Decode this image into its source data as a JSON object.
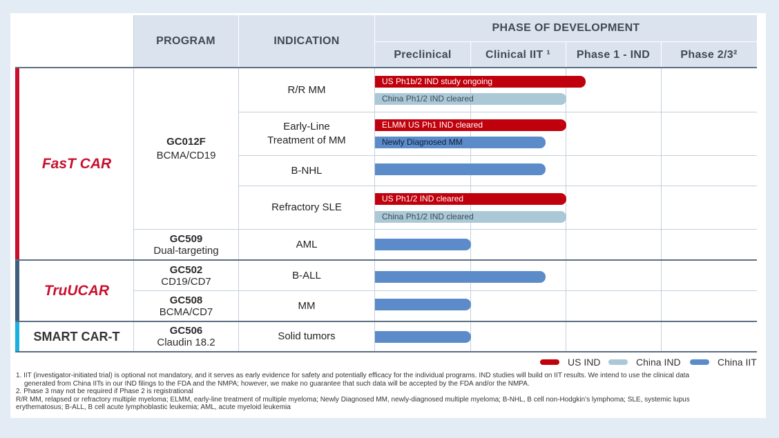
{
  "header": {
    "program": "PROGRAM",
    "indication": "INDICATION",
    "phase_of_development": "PHASE OF DEVELOPMENT",
    "phases": [
      "Preclinical",
      "Clinical IIT ¹",
      "Phase 1 - IND",
      "Phase 2/3²"
    ]
  },
  "platforms": [
    {
      "name": "FasT CAR",
      "color": "#c8102e"
    },
    {
      "name": "TruUCAR",
      "color": "#c8102e"
    },
    {
      "name": "SMART CAR-T",
      "color": "#333333"
    }
  ],
  "platform_stripe_colors": [
    "#c8102e",
    "#3e5f80",
    "#1ab0e0"
  ],
  "programs": [
    {
      "code": "GC012F",
      "target": "BCMA/CD19"
    },
    {
      "code": "GC509",
      "target": "Dual-targeting"
    },
    {
      "code": "GC502",
      "target": "CD19/CD7"
    },
    {
      "code": "GC508",
      "target": "BCMA/CD7"
    },
    {
      "code": "GC506",
      "target": "Claudin 18.2"
    }
  ],
  "indications": [
    "R/R MM",
    "Early-Line",
    "Treatment of MM",
    "B-NHL",
    "Refractory SLE",
    "AML",
    "B-ALL",
    "MM",
    "Solid tumors"
  ],
  "bars": [
    {
      "type": "us",
      "label": "US Ph1b/2 IND study ongoing",
      "progress_phases": 2.2
    },
    {
      "type": "cnind",
      "label": "China Ph1/2 IND cleared",
      "progress_phases": 2.0
    },
    {
      "type": "us",
      "label": "ELMM US Ph1 IND cleared",
      "progress_phases": 2.0
    },
    {
      "type": "cniit",
      "label": "Newly Diagnosed MM",
      "progress_phases": 1.78
    },
    {
      "type": "cniit",
      "label": "",
      "progress_phases": 1.78
    },
    {
      "type": "us",
      "label": "US Ph1/2 IND cleared",
      "progress_phases": 2.0
    },
    {
      "type": "cnind",
      "label": "China Ph1/2 IND cleared",
      "progress_phases": 2.0
    },
    {
      "type": "cniit",
      "label": "",
      "progress_phases": 1.0
    },
    {
      "type": "cniit",
      "label": "",
      "progress_phases": 1.78
    },
    {
      "type": "cniit",
      "label": "",
      "progress_phases": 1.0
    },
    {
      "type": "cniit",
      "label": "",
      "progress_phases": 1.0
    }
  ],
  "legend": [
    {
      "label": "US IND",
      "color": "#c0000c"
    },
    {
      "label": "China IND",
      "color": "#abc8d7"
    },
    {
      "label": "China IIT",
      "color": "#5b8bc9"
    }
  ],
  "footnotes": [
    "1.  IIT (investigator-initiated trial) is optional not mandatory, and it serves as early evidence for safety and potentially efficacy for the individual programs. IND studies will build on IIT results. We intend to use the clinical data",
    "generated from China IITs in our IND filings to the FDA and the NMPA; however, we make no guarantee that such data will be accepted by the FDA and/or the NMPA.",
    "2.  Phase 3 may not be required if Phase 2 is registrational",
    "R/R MM, relapsed or refractory multiple myeloma; ELMM, early-line treatment of multiple myeloma; Newly Diagnosed MM, newly-diagnosed multiple myeloma; B-NHL, B cell non-Hodgkin’s lymphoma; SLE, systemic lupus",
    "erythematosus; B-ALL, B cell acute lymphoblastic leukemia; AML, acute myeloid leukemia"
  ]
}
